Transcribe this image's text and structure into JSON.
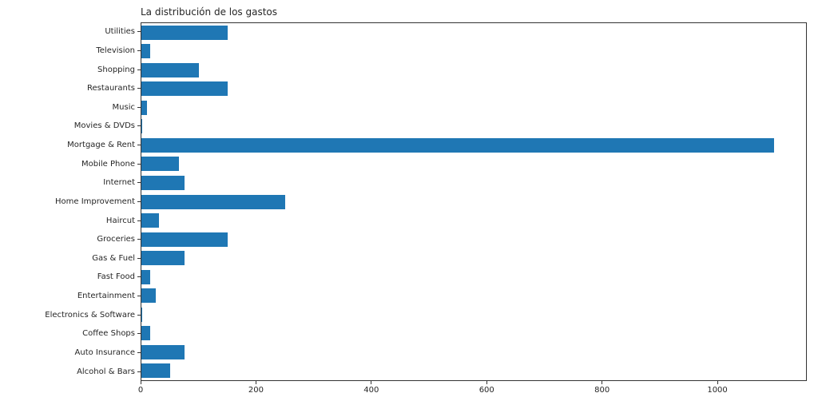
{
  "chart_data": {
    "type": "bar",
    "orientation": "horizontal",
    "title": "La distribución de los gastos",
    "categories": [
      "Utilities",
      "Television",
      "Shopping",
      "Restaurants",
      "Music",
      "Movies & DVDs",
      "Mortgage & Rent",
      "Mobile Phone",
      "Internet",
      "Home Improvement",
      "Haircut",
      "Groceries",
      "Gas & Fuel",
      "Fast Food",
      "Entertainment",
      "Electronics & Software",
      "Coffee Shops",
      "Auto Insurance",
      "Alcohol & Bars"
    ],
    "values": [
      150,
      15,
      100,
      150,
      10,
      1,
      1100,
      65,
      75,
      250,
      30,
      150,
      75,
      15,
      25,
      1,
      15,
      75,
      50
    ],
    "x_ticks": [
      "0",
      "200",
      "400",
      "600",
      "800",
      "1000"
    ],
    "x_tick_values": [
      0,
      200,
      400,
      600,
      800,
      1000
    ],
    "xlim": [
      0,
      1155
    ],
    "xlabel": "",
    "ylabel": "",
    "grid": false,
    "legend": null,
    "bar_color": "#1f77b4",
    "spine_color": "#333333",
    "text_color": "#262626",
    "background_color": "#ffffff"
  }
}
